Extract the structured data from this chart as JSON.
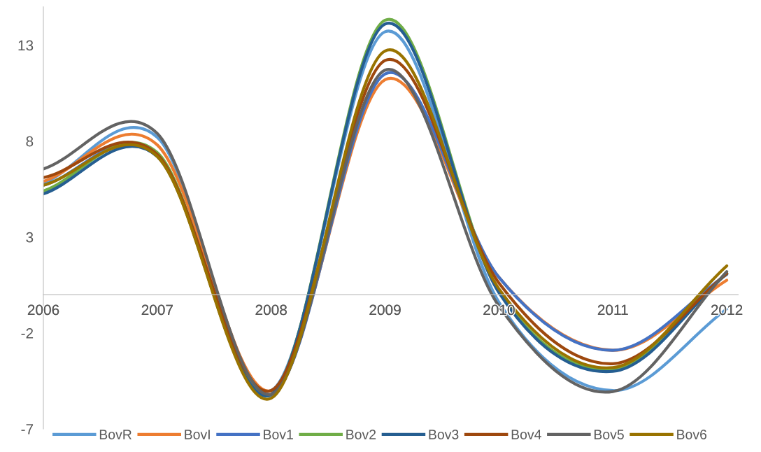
{
  "chart_data": {
    "type": "line",
    "categories": [
      "2006",
      "2007",
      "2008",
      "2009",
      "2010",
      "2011",
      "2012"
    ],
    "series": [
      {
        "name": "BovR",
        "color": "#5b9bd5",
        "values": [
          5.8,
          8.2,
          -5.0,
          13.7,
          -0.4,
          -5.0,
          -0.75
        ]
      },
      {
        "name": "BovI",
        "color": "#ed7d31",
        "values": [
          5.9,
          7.8,
          -5.0,
          11.2,
          0.9,
          -2.9,
          0.75
        ]
      },
      {
        "name": "Bov1",
        "color": "#4472c4",
        "values": [
          5.7,
          7.3,
          -5.25,
          11.5,
          0.9,
          -2.9,
          1.05
        ]
      },
      {
        "name": "Bov2",
        "color": "#70ad47",
        "values": [
          5.4,
          7.4,
          -5.2,
          14.3,
          0.2,
          -3.9,
          1.1
        ]
      },
      {
        "name": "Bov3",
        "color": "#255e91",
        "values": [
          5.25,
          7.2,
          -5.2,
          14.1,
          0.1,
          -4.0,
          1.1
        ]
      },
      {
        "name": "Bov4",
        "color": "#9e480e",
        "values": [
          6.1,
          7.3,
          -5.0,
          12.2,
          0.6,
          -3.6,
          1.1
        ]
      },
      {
        "name": "Bov5",
        "color": "#636363",
        "values": [
          6.55,
          8.4,
          -5.2,
          11.7,
          -0.6,
          -5.05,
          1.2
        ]
      },
      {
        "name": "Bov6",
        "color": "#997300",
        "values": [
          5.7,
          7.2,
          -5.4,
          12.7,
          0.3,
          -3.8,
          1.5
        ]
      }
    ],
    "ylim": [
      -7,
      15
    ],
    "yticks": [
      -7,
      -2,
      3,
      8,
      13
    ],
    "grid": false,
    "legend": "bottom",
    "marker": "none",
    "line_style": "solid"
  }
}
